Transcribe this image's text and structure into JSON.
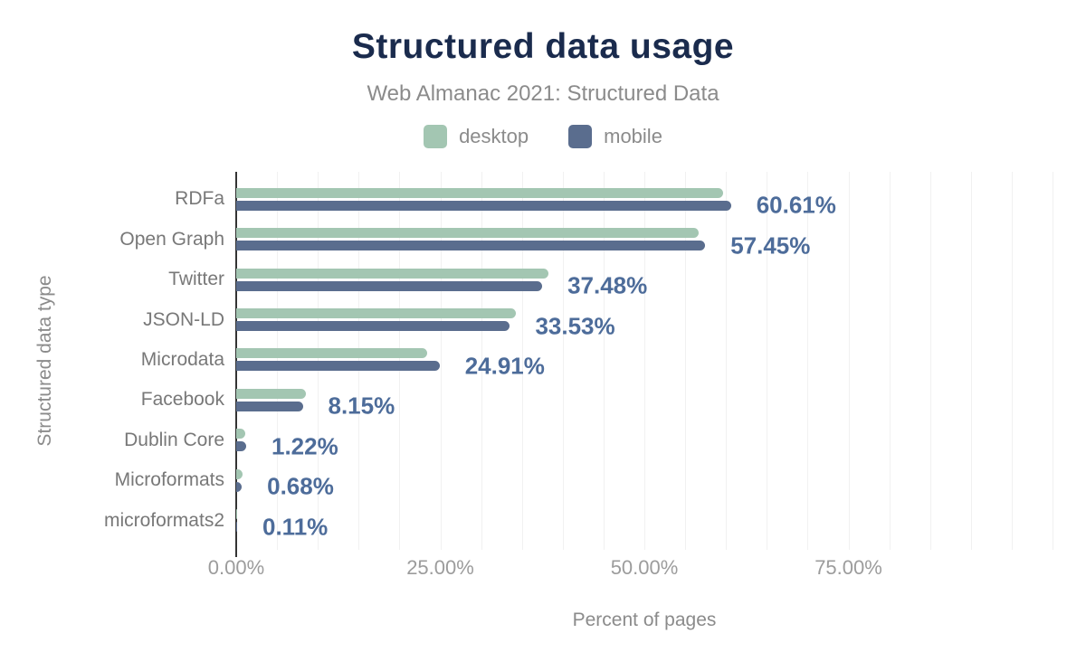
{
  "header": {
    "title": "Structured data usage",
    "subtitle": "Web Almanac 2021: Structured Data"
  },
  "legend": {
    "items": [
      {
        "label": "desktop",
        "color": "#a3c6b2"
      },
      {
        "label": "mobile",
        "color": "#5a6d8e"
      }
    ]
  },
  "colors": {
    "title": "#1a2b4d",
    "subtitle": "#8b8b8b",
    "value_label": "#4d6c9a",
    "category_label": "#787878",
    "tick_label": "#9c9c9c",
    "axis_line": "#333333",
    "gridline": "#f1f1f1",
    "background": "#ffffff"
  },
  "chart_data": {
    "type": "bar",
    "orientation": "horizontal",
    "title": "Structured data usage",
    "subtitle": "Web Almanac 2021: Structured Data",
    "xlabel": "Percent of pages",
    "ylabel": "Structured data type",
    "xlim": [
      0,
      100
    ],
    "grid_step": 5,
    "grid": true,
    "legend_position": "top",
    "categories": [
      "RDFa",
      "Open Graph",
      "Twitter",
      "JSON-LD",
      "Microdata",
      "Facebook",
      "Dublin Core",
      "Microformats",
      "microformats2"
    ],
    "series": [
      {
        "name": "desktop",
        "color": "#a3c6b2",
        "values": [
          59.7,
          56.6,
          38.2,
          34.3,
          23.4,
          8.5,
          1.1,
          0.75,
          0.1
        ]
      },
      {
        "name": "mobile",
        "color": "#5a6d8e",
        "values": [
          60.61,
          57.45,
          37.48,
          33.53,
          24.91,
          8.15,
          1.22,
          0.68,
          0.11
        ]
      }
    ],
    "value_labels": [
      "60.61%",
      "57.45%",
      "37.48%",
      "33.53%",
      "24.91%",
      "8.15%",
      "1.22%",
      "0.68%",
      "0.11%"
    ],
    "x_ticks": [
      {
        "label": "0.00%",
        "value": 0
      },
      {
        "label": "25.00%",
        "value": 25
      },
      {
        "label": "50.00%",
        "value": 50
      },
      {
        "label": "75.00%",
        "value": 75
      }
    ]
  }
}
